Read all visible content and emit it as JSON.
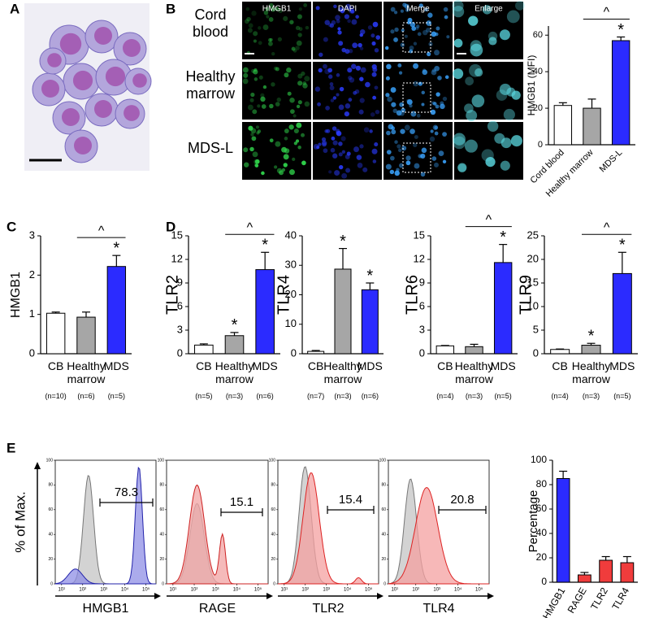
{
  "panel_labels": [
    "A",
    "B",
    "C",
    "D",
    "E"
  ],
  "panel_b": {
    "columns": [
      "HMGB1",
      "DAPI",
      "Merge",
      "Enlarge"
    ],
    "rows": [
      "Cord blood",
      "Healthy marrow",
      "MDS-L"
    ]
  },
  "flow": {
    "y_label": "% of Max.",
    "ylim": [
      0,
      100
    ],
    "yticks": [
      0,
      20,
      40,
      60,
      80,
      100
    ],
    "xlog": true,
    "xlim": [
      5,
      300000
    ],
    "xticks": [
      {
        "value": 10,
        "label": "10¹"
      },
      {
        "value": 100,
        "label": "10²"
      },
      {
        "value": 1000,
        "label": "10³"
      },
      {
        "value": 10000,
        "label": "10⁴"
      },
      {
        "value": 100000,
        "label": "10⁵"
      }
    ],
    "panels": [
      {
        "marker": "HMGB1",
        "gate_value": 78.3
      },
      {
        "marker": "RAGE",
        "gate_value": 15.1
      },
      {
        "marker": "TLR2",
        "gate_value": 15.4
      },
      {
        "marker": "TLR4",
        "gate_value": 20.8
      }
    ]
  },
  "chart_data": [
    {
      "type": "bar",
      "y_label": "HMGB1 (MFI)",
      "categories": [
        "Cord blood",
        "Healthy marrow",
        "MDS-L"
      ],
      "values": [
        21.5,
        20,
        57
      ],
      "errors": [
        1.5,
        5,
        2
      ],
      "colors": [
        "#ffffff",
        "#a6a6a6",
        "#2b2bff"
      ],
      "ylim": [
        0,
        65
      ],
      "yticks": [
        0,
        20,
        40,
        60
      ],
      "markers": [
        null,
        null,
        "*"
      ],
      "bracket": {
        "between": [
          1,
          2
        ],
        "label": "^"
      }
    },
    {
      "type": "bar",
      "y_label": "HMGB1",
      "categories": [
        "CB",
        "Healthy marrow",
        "MDS"
      ],
      "n": [
        "(n=10)",
        "(n=6)",
        "(n=5)"
      ],
      "values": [
        1.03,
        0.93,
        2.22
      ],
      "errors": [
        0.03,
        0.13,
        0.28
      ],
      "colors": [
        "#ffffff",
        "#a6a6a6",
        "#2b2bff"
      ],
      "ylim": [
        0,
        3
      ],
      "yticks": [
        0,
        1,
        2,
        3
      ],
      "markers": [
        null,
        null,
        "*"
      ],
      "bracket": {
        "between": [
          1,
          2
        ],
        "label": "^"
      }
    },
    {
      "type": "bar",
      "y_label": "TLR2",
      "categories": [
        "CB",
        "Healthy marrow",
        "MDS"
      ],
      "n": [
        "(n=5)",
        "(n=3)",
        "(n=6)"
      ],
      "values": [
        1.1,
        2.3,
        10.7
      ],
      "errors": [
        0.15,
        0.4,
        2.2
      ],
      "colors": [
        "#ffffff",
        "#a6a6a6",
        "#2b2bff"
      ],
      "ylim": [
        0,
        15
      ],
      "yticks": [
        0,
        3,
        6,
        9,
        12,
        15
      ],
      "markers": [
        null,
        "*",
        "*"
      ],
      "bracket": {
        "between": [
          1,
          2
        ],
        "label": "^"
      }
    },
    {
      "type": "bar",
      "y_label": "TLR4",
      "categories": [
        "CB",
        "Healthy marrow",
        "MDS"
      ],
      "n": [
        "(n=7)",
        "(n=3)",
        "(n=6)"
      ],
      "values": [
        0.8,
        28.7,
        21.7
      ],
      "errors": [
        0.3,
        7,
        2.3
      ],
      "colors": [
        "#ffffff",
        "#a6a6a6",
        "#2b2bff"
      ],
      "ylim": [
        0,
        40
      ],
      "yticks": [
        0,
        10,
        20,
        30,
        40
      ],
      "markers": [
        null,
        "*",
        "*"
      ]
    },
    {
      "type": "bar",
      "y_label": "TLR6",
      "categories": [
        "CB",
        "Healthy marrow",
        "MDS"
      ],
      "n": [
        "(n=4)",
        "(n=3)",
        "(n=5)"
      ],
      "values": [
        1.0,
        0.9,
        11.6
      ],
      "errors": [
        0.05,
        0.3,
        2.3
      ],
      "colors": [
        "#ffffff",
        "#a6a6a6",
        "#2b2bff"
      ],
      "ylim": [
        0,
        15
      ],
      "yticks": [
        0,
        3,
        6,
        9,
        12,
        15
      ],
      "markers": [
        null,
        null,
        "*"
      ],
      "bracket": {
        "between": [
          1,
          2
        ],
        "label": "^"
      }
    },
    {
      "type": "bar",
      "y_label": "TLR9",
      "categories": [
        "CB",
        "Healthy marrow",
        "MDS"
      ],
      "n": [
        "(n=4)",
        "(n=3)",
        "(n=5)"
      ],
      "values": [
        0.9,
        1.8,
        17
      ],
      "errors": [
        0.1,
        0.4,
        4.5
      ],
      "colors": [
        "#ffffff",
        "#a6a6a6",
        "#2b2bff"
      ],
      "ylim": [
        0,
        25
      ],
      "yticks": [
        0,
        5,
        10,
        15,
        20,
        25
      ],
      "markers": [
        null,
        "*",
        "*"
      ],
      "bracket": {
        "between": [
          1,
          2
        ],
        "label": "^"
      }
    },
    {
      "type": "bar",
      "y_label": "Percentage",
      "categories": [
        "HMGB1",
        "RAGE",
        "TLR2",
        "TLR4"
      ],
      "values": [
        85,
        6,
        18,
        16
      ],
      "errors": [
        6,
        2,
        3,
        5
      ],
      "colors": [
        "#2b2bff",
        "#f03c3c",
        "#f03c3c",
        "#f03c3c"
      ],
      "ylim": [
        0,
        100
      ],
      "yticks": [
        0,
        20,
        40,
        60,
        80,
        100
      ]
    }
  ]
}
